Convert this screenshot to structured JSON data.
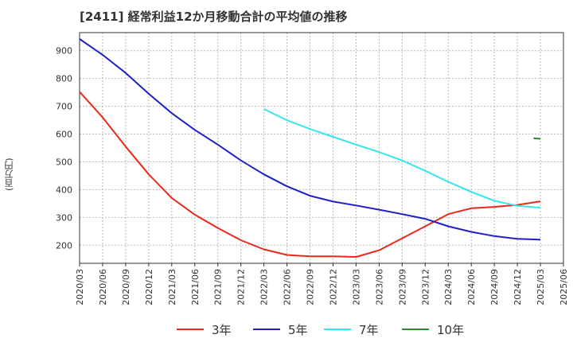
{
  "chart_data": {
    "type": "line",
    "title": "[2411]  経常利益12か月移動合計の平均値の推移",
    "ylabel": "(百万円)",
    "xlabel": "",
    "ylim": [
      135,
      965
    ],
    "yticks": [
      200,
      300,
      400,
      500,
      600,
      700,
      800,
      900
    ],
    "x": [
      "2020/03",
      "2020/06",
      "2020/09",
      "2020/12",
      "2021/03",
      "2021/06",
      "2021/09",
      "2021/12",
      "2022/03",
      "2022/06",
      "2022/09",
      "2022/12",
      "2023/03",
      "2023/06",
      "2023/09",
      "2023/12",
      "2024/03",
      "2024/06",
      "2024/09",
      "2024/12",
      "2025/03",
      "2025/06"
    ],
    "grid": true,
    "legend_position": "bottom",
    "series": [
      {
        "name": "3年",
        "color": "#e8291c",
        "values": [
          752,
          660,
          555,
          455,
          370,
          310,
          262,
          218,
          185,
          165,
          160,
          160,
          158,
          182,
          225,
          268,
          312,
          333,
          338,
          345,
          358,
          null
        ]
      },
      {
        "name": "5年",
        "color": "#1f1fc8",
        "values": [
          942,
          885,
          820,
          745,
          675,
          615,
          562,
          505,
          455,
          412,
          378,
          357,
          343,
          328,
          312,
          295,
          268,
          248,
          233,
          223,
          220,
          null
        ]
      },
      {
        "name": "7年",
        "color": "#33e6f2",
        "values": [
          null,
          null,
          null,
          null,
          null,
          null,
          null,
          null,
          690,
          650,
          618,
          590,
          562,
          535,
          505,
          468,
          428,
          392,
          360,
          342,
          335,
          null
        ]
      },
      {
        "name": "10年",
        "color": "#2a8a2a",
        "values": [
          null,
          null,
          null,
          null,
          null,
          null,
          null,
          null,
          null,
          null,
          null,
          null,
          null,
          null,
          null,
          null,
          null,
          null,
          null,
          null,
          583,
          null
        ],
        "prev_value": 590
      }
    ]
  }
}
